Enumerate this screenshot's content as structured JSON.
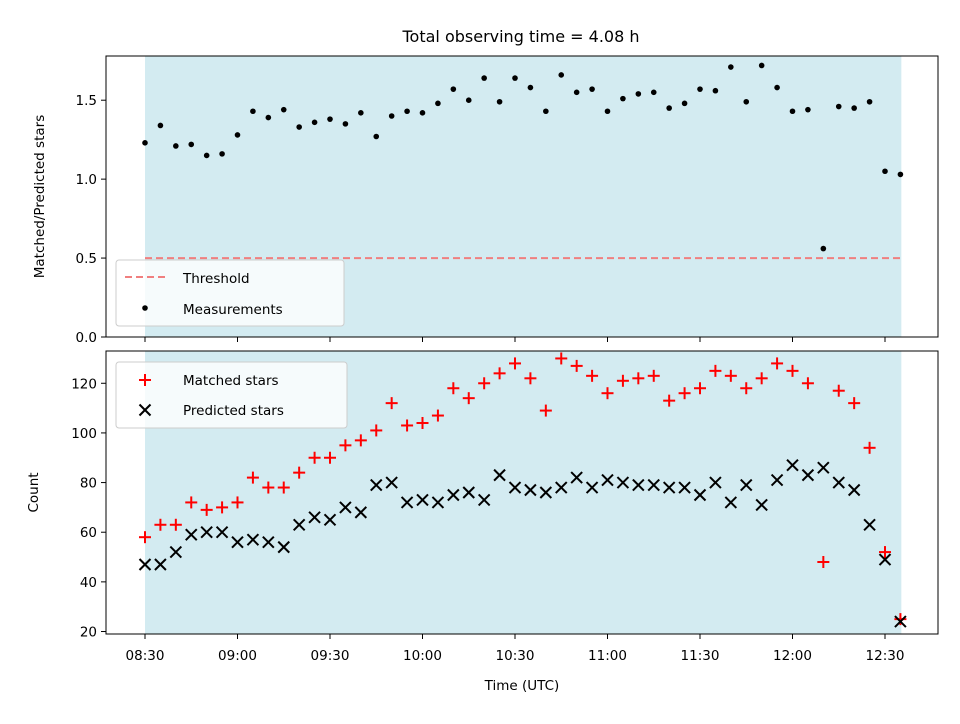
{
  "figure": {
    "title": "Total observing time = 4.08 h"
  },
  "chart_data": [
    {
      "type": "scatter",
      "ylabel": "Matched/Predicted stars",
      "ylim": [
        0.0,
        1.78
      ],
      "yticks": [
        0.0,
        0.5,
        1.0,
        1.5
      ],
      "ytick_labels": [
        "0.0",
        "0.5",
        "1.0",
        "1.5"
      ],
      "threshold": 0.5,
      "threshold_color": "#f07f7f",
      "span_color": "#d3ebf1",
      "legend": {
        "placement": "lower-left",
        "threshold_label": "Threshold",
        "measurements_label": "Measurements"
      },
      "x_minutes": [
        0,
        5,
        10,
        15,
        20,
        25,
        30,
        35,
        40,
        45,
        50,
        55,
        60,
        65,
        70,
        75,
        80,
        85,
        90,
        95,
        100,
        105,
        110,
        115,
        120,
        125,
        130,
        135,
        140,
        145,
        150,
        155,
        160,
        165,
        170,
        175,
        180,
        185,
        190,
        195,
        200,
        205,
        210,
        215,
        220,
        225,
        230,
        235,
        240,
        245
      ],
      "series": [
        {
          "name": "Measurements",
          "color": "#000000",
          "values": [
            1.23,
            1.34,
            1.21,
            1.22,
            1.15,
            1.16,
            1.28,
            1.43,
            1.39,
            1.44,
            1.33,
            1.36,
            1.38,
            1.35,
            1.42,
            1.27,
            1.4,
            1.43,
            1.42,
            1.48,
            1.57,
            1.5,
            1.64,
            1.49,
            1.64,
            1.58,
            1.43,
            1.66,
            1.55,
            1.57,
            1.43,
            1.51,
            1.54,
            1.55,
            1.45,
            1.48,
            1.57,
            1.56,
            1.71,
            1.49,
            1.72,
            1.58,
            1.43,
            1.44,
            0.56,
            1.46,
            1.45,
            1.49,
            1.05,
            1.03
          ]
        }
      ]
    },
    {
      "type": "scatter",
      "xlabel": "Time (UTC)",
      "ylabel": "Count",
      "ylim": [
        19,
        133
      ],
      "yticks": [
        20,
        40,
        60,
        80,
        100,
        120
      ],
      "ytick_labels": [
        "20",
        "40",
        "60",
        "80",
        "100",
        "120"
      ],
      "xtick_minutes": [
        0,
        30,
        60,
        90,
        120,
        150,
        180,
        210,
        240
      ],
      "xtick_labels": [
        "08:30",
        "09:00",
        "09:30",
        "10:00",
        "10:30",
        "11:00",
        "11:30",
        "12:00",
        "12:30"
      ],
      "span_color": "#d3ebf1",
      "legend": {
        "placement": "top-left"
      },
      "x_minutes": [
        0,
        5,
        10,
        15,
        20,
        25,
        30,
        35,
        40,
        45,
        50,
        55,
        60,
        65,
        70,
        75,
        80,
        85,
        90,
        95,
        100,
        105,
        110,
        115,
        120,
        125,
        130,
        135,
        140,
        145,
        150,
        155,
        160,
        165,
        170,
        175,
        180,
        185,
        190,
        195,
        200,
        205,
        210,
        215,
        220,
        225,
        230,
        235,
        240,
        245
      ],
      "series": [
        {
          "name": "Matched stars",
          "marker": "plus",
          "color": "#ff0000",
          "values": [
            58,
            63,
            63,
            72,
            69,
            70,
            72,
            82,
            78,
            78,
            84,
            90,
            90,
            95,
            97,
            101,
            112,
            103,
            104,
            107,
            118,
            114,
            120,
            124,
            128,
            122,
            109,
            130,
            127,
            123,
            116,
            121,
            122,
            123,
            113,
            116,
            118,
            125,
            123,
            118,
            122,
            128,
            125,
            120,
            48,
            117,
            112,
            94,
            52,
            25
          ]
        },
        {
          "name": "Predicted stars",
          "marker": "x",
          "color": "#000000",
          "values": [
            47,
            47,
            52,
            59,
            60,
            60,
            56,
            57,
            56,
            54,
            63,
            66,
            65,
            70,
            68,
            79,
            80,
            72,
            73,
            72,
            75,
            76,
            73,
            83,
            78,
            77,
            76,
            78,
            82,
            78,
            81,
            80,
            79,
            79,
            78,
            78,
            75,
            80,
            72,
            79,
            71,
            81,
            87,
            83,
            86,
            80,
            77,
            63,
            49,
            24
          ]
        }
      ]
    }
  ]
}
